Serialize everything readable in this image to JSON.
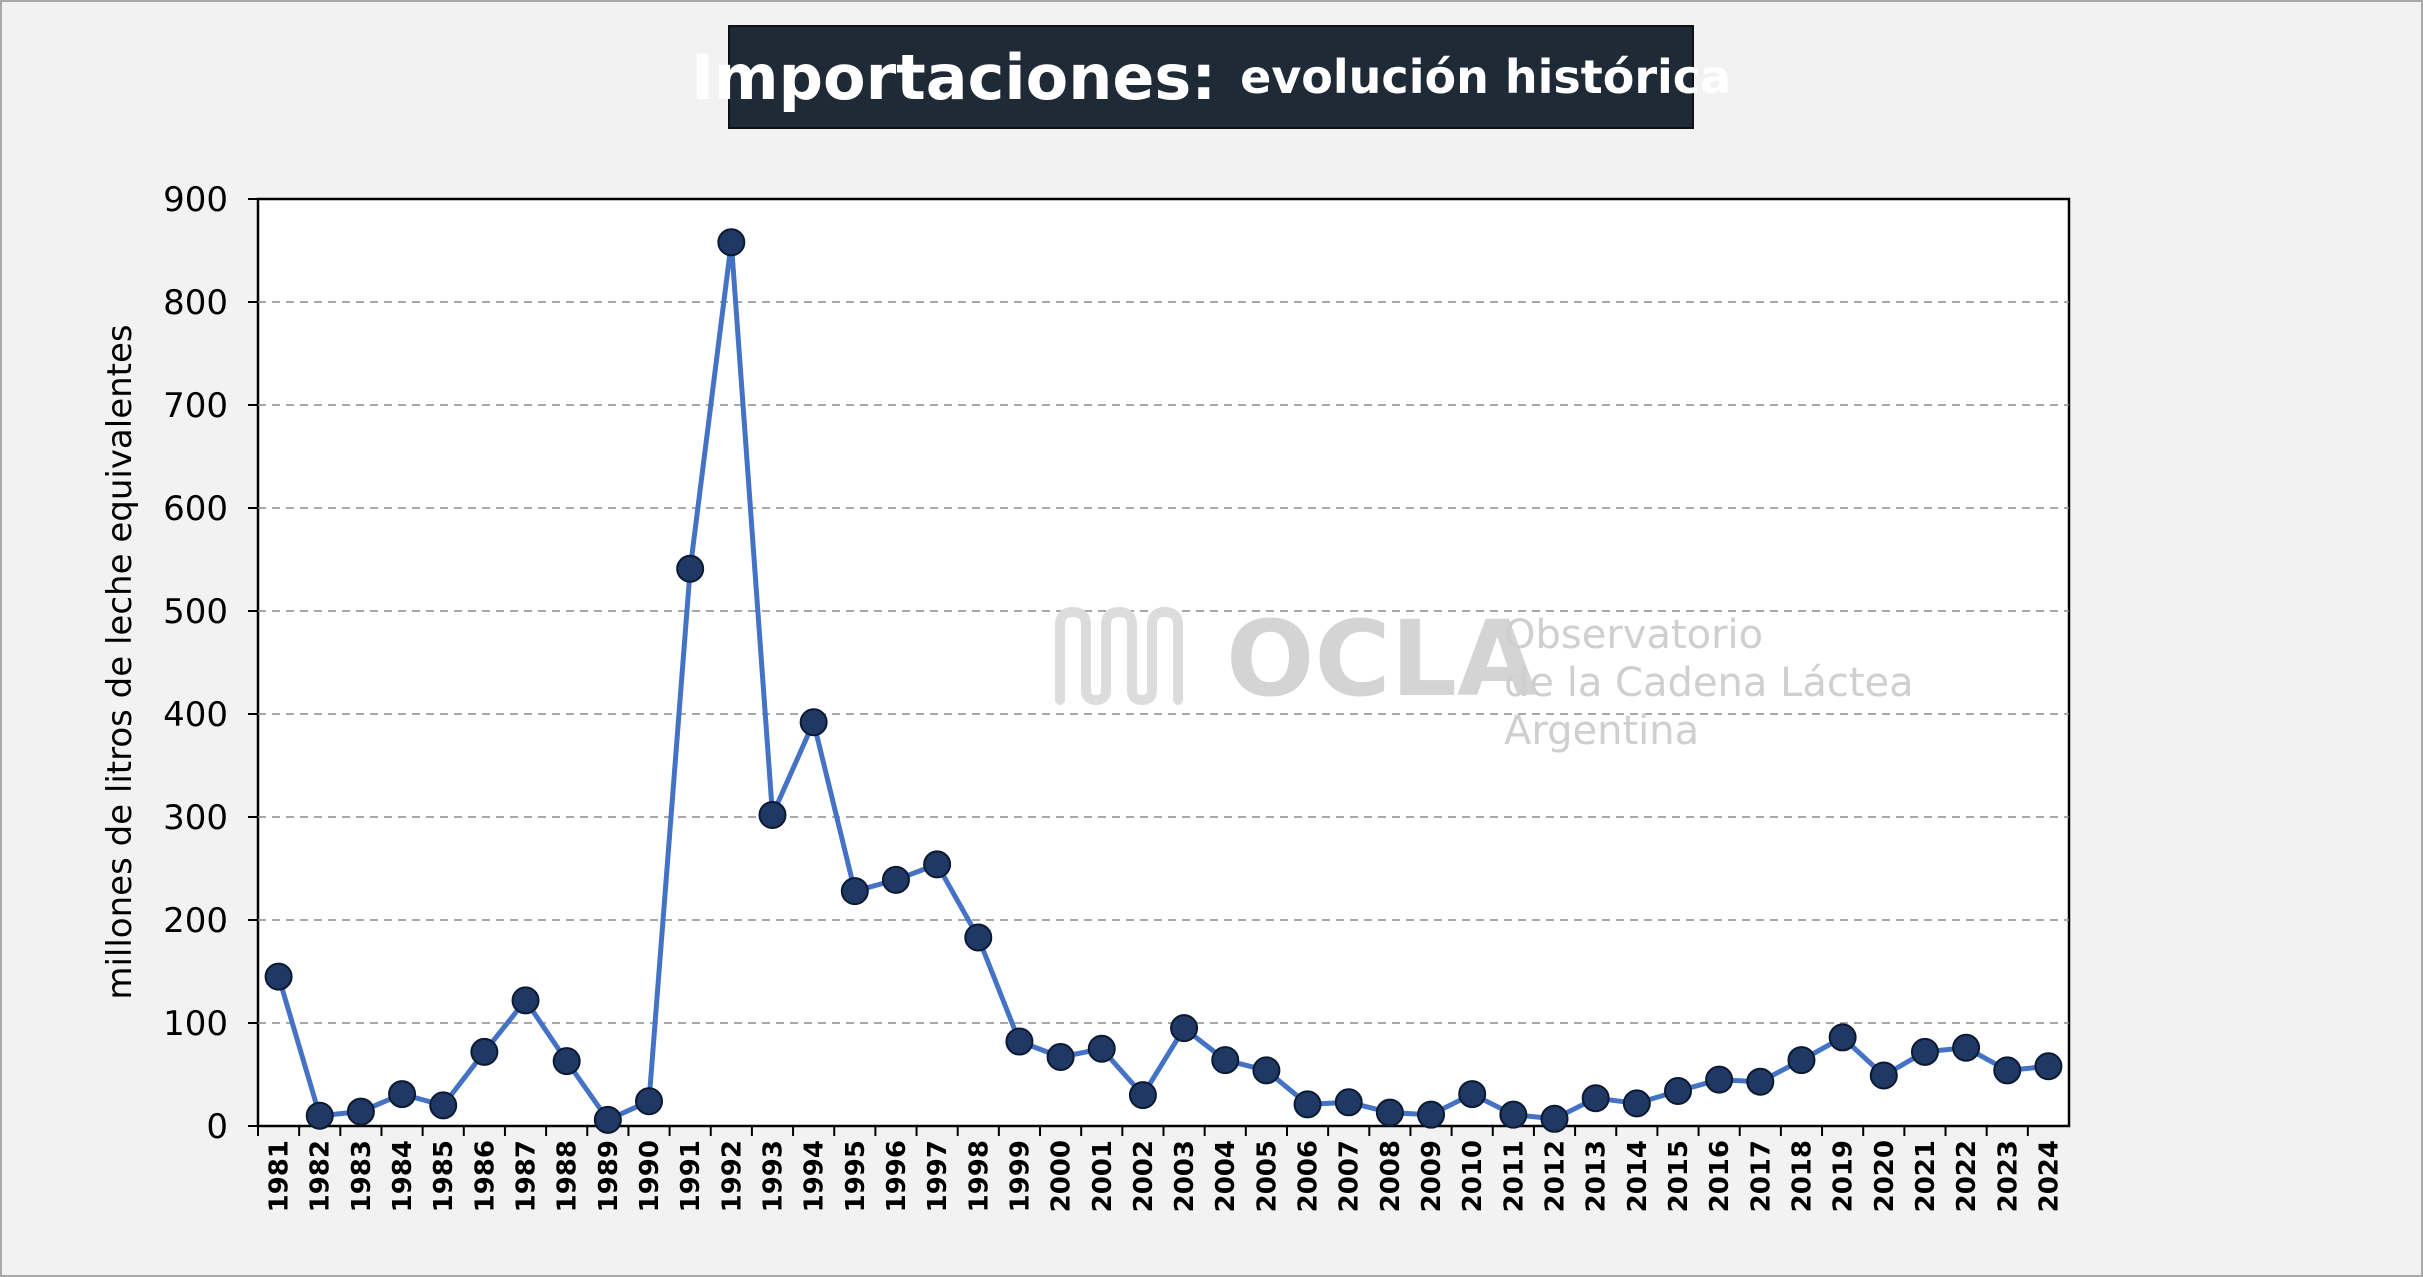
{
  "title": {
    "main": "Importaciones:",
    "sub": "evolución histórica"
  },
  "watermark": {
    "logo": "OCLA",
    "lines": [
      "Observatorio",
      "de la Cadena Láctea",
      "Argentina"
    ]
  },
  "chart_data": {
    "type": "line",
    "title": "Importaciones: evolución histórica",
    "xlabel": "",
    "ylabel": "millones de litros de leche equivalentes",
    "ylim": [
      0,
      900
    ],
    "yticks": [
      0,
      100,
      200,
      300,
      400,
      500,
      600,
      700,
      800,
      900
    ],
    "grid": "horizontal dashed",
    "legend": "none",
    "line_color": "#4472c4",
    "marker_color": "#1f3864",
    "categories": [
      "1981",
      "1982",
      "1983",
      "1984",
      "1985",
      "1986",
      "1987",
      "1988",
      "1989",
      "1990",
      "1991",
      "1992",
      "1993",
      "1994",
      "1995",
      "1996",
      "1997",
      "1998",
      "1999",
      "2000",
      "2001",
      "2002",
      "2003",
      "2004",
      "2005",
      "2006",
      "2007",
      "2008",
      "2009",
      "2010",
      "2011",
      "2012",
      "2013",
      "2014",
      "2015",
      "2016",
      "2017",
      "2018",
      "2019",
      "2020",
      "2021",
      "2022",
      "2023",
      "2024"
    ],
    "series": [
      {
        "values": [
          145,
          10,
          14,
          31,
          20,
          72,
          122,
          63,
          6,
          24,
          541,
          858,
          302,
          392,
          228,
          239,
          254,
          183,
          82,
          67,
          75,
          30,
          95,
          64,
          54,
          21,
          23,
          13,
          11,
          31,
          11,
          7,
          27,
          22,
          34,
          45,
          43,
          64,
          86,
          49,
          72,
          76,
          54,
          58
        ]
      }
    ]
  }
}
